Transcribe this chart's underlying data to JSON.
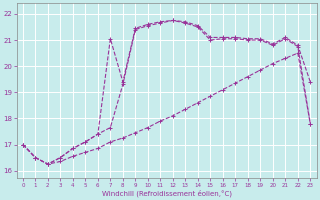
{
  "xlabel": "Windchill (Refroidissement éolien,°C)",
  "bg_color": "#c8ecec",
  "line_color": "#993399",
  "grid_color": "#ffffff",
  "axis_color": "#666666",
  "xlim": [
    -0.5,
    23.5
  ],
  "ylim": [
    15.7,
    22.4
  ],
  "xticks": [
    0,
    1,
    2,
    3,
    4,
    5,
    6,
    7,
    8,
    9,
    10,
    11,
    12,
    13,
    14,
    15,
    16,
    17,
    18,
    19,
    20,
    21,
    22,
    23
  ],
  "yticks": [
    16,
    17,
    18,
    19,
    20,
    21,
    22
  ],
  "line1_x": [
    0,
    1,
    2,
    3,
    4,
    5,
    6,
    7,
    8,
    9,
    10,
    11,
    12,
    13,
    14,
    15,
    16,
    17,
    18,
    19,
    20,
    21,
    22,
    23
  ],
  "line1_y": [
    17.0,
    16.5,
    16.25,
    16.35,
    16.55,
    16.7,
    16.85,
    17.1,
    17.25,
    17.45,
    17.65,
    17.9,
    18.1,
    18.35,
    18.6,
    18.85,
    19.1,
    19.35,
    19.6,
    19.85,
    20.1,
    20.3,
    20.5,
    17.8
  ],
  "line2_x": [
    0,
    1,
    2,
    3,
    4,
    5,
    6,
    7,
    8,
    9,
    10,
    11,
    12,
    13,
    14,
    15,
    16,
    17,
    18,
    19,
    20,
    21,
    22,
    23
  ],
  "line2_y": [
    17.0,
    16.5,
    16.25,
    16.5,
    16.85,
    17.1,
    17.4,
    21.05,
    19.4,
    21.45,
    21.6,
    21.7,
    21.75,
    21.7,
    21.55,
    21.1,
    21.1,
    21.1,
    21.05,
    21.05,
    20.85,
    21.1,
    20.8,
    19.4
  ],
  "line3_x": [
    0,
    1,
    2,
    3,
    4,
    5,
    6,
    7,
    8,
    9,
    10,
    11,
    12,
    13,
    14,
    15,
    16,
    17,
    18,
    19,
    20,
    21,
    22,
    23
  ],
  "line3_y": [
    17.0,
    16.5,
    16.25,
    16.5,
    16.85,
    17.1,
    17.4,
    17.65,
    19.3,
    21.4,
    21.55,
    21.65,
    21.75,
    21.65,
    21.5,
    21.0,
    21.05,
    21.05,
    21.0,
    21.0,
    20.8,
    21.05,
    20.75,
    17.8
  ]
}
